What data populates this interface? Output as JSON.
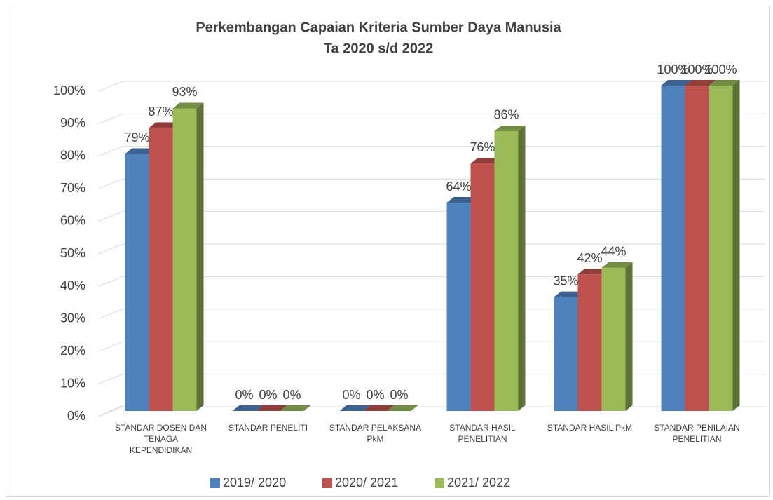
{
  "chart_data": {
    "type": "bar3d",
    "title": "Perkembangan Capaian Kriteria Sumber Daya Manusia",
    "subtitle": "Ta 2020 s/d 2022",
    "categories": [
      "STANDAR DOSEN DAN TENAGA KEPENDIDIKAN",
      "STANDAR PENELITI",
      "STANDAR PELAKSANA PkM",
      "STANDAR HASIL PENELITIAN",
      "STANDAR HASIL PkM",
      "STANDAR PENILAIAN PENELITIAN"
    ],
    "series": [
      {
        "name": "2019/ 2020",
        "color": "#4f81bd",
        "values": [
          79,
          0,
          0,
          64,
          35,
          100
        ],
        "value_labels": [
          "79%",
          "0%",
          "0%",
          "64%",
          "35%",
          "100%"
        ]
      },
      {
        "name": "2020/ 2021",
        "color": "#c0504d",
        "values": [
          87,
          0,
          0,
          76,
          42,
          100
        ],
        "value_labels": [
          "87%",
          "0%",
          "0%",
          "76%",
          "42%",
          "100%"
        ]
      },
      {
        "name": "2021/ 2022",
        "color": "#9bbb59",
        "values": [
          93,
          0,
          0,
          86,
          44,
          100
        ],
        "value_labels": [
          "93%",
          "0%",
          "0%",
          "86%",
          "44%",
          "100%"
        ]
      }
    ],
    "ylim": [
      0,
      100
    ],
    "yticks": [
      {
        "value": 0,
        "label": "0%"
      },
      {
        "value": 10,
        "label": "10%"
      },
      {
        "value": 20,
        "label": "20%"
      },
      {
        "value": 30,
        "label": "30%"
      },
      {
        "value": 40,
        "label": "40%"
      },
      {
        "value": 50,
        "label": "50%"
      },
      {
        "value": 60,
        "label": "60%"
      },
      {
        "value": 70,
        "label": "70%"
      },
      {
        "value": 80,
        "label": "80%"
      },
      {
        "value": 90,
        "label": "90%"
      },
      {
        "value": 100,
        "label": "100%"
      }
    ],
    "grid": true,
    "legend": "bottom"
  }
}
